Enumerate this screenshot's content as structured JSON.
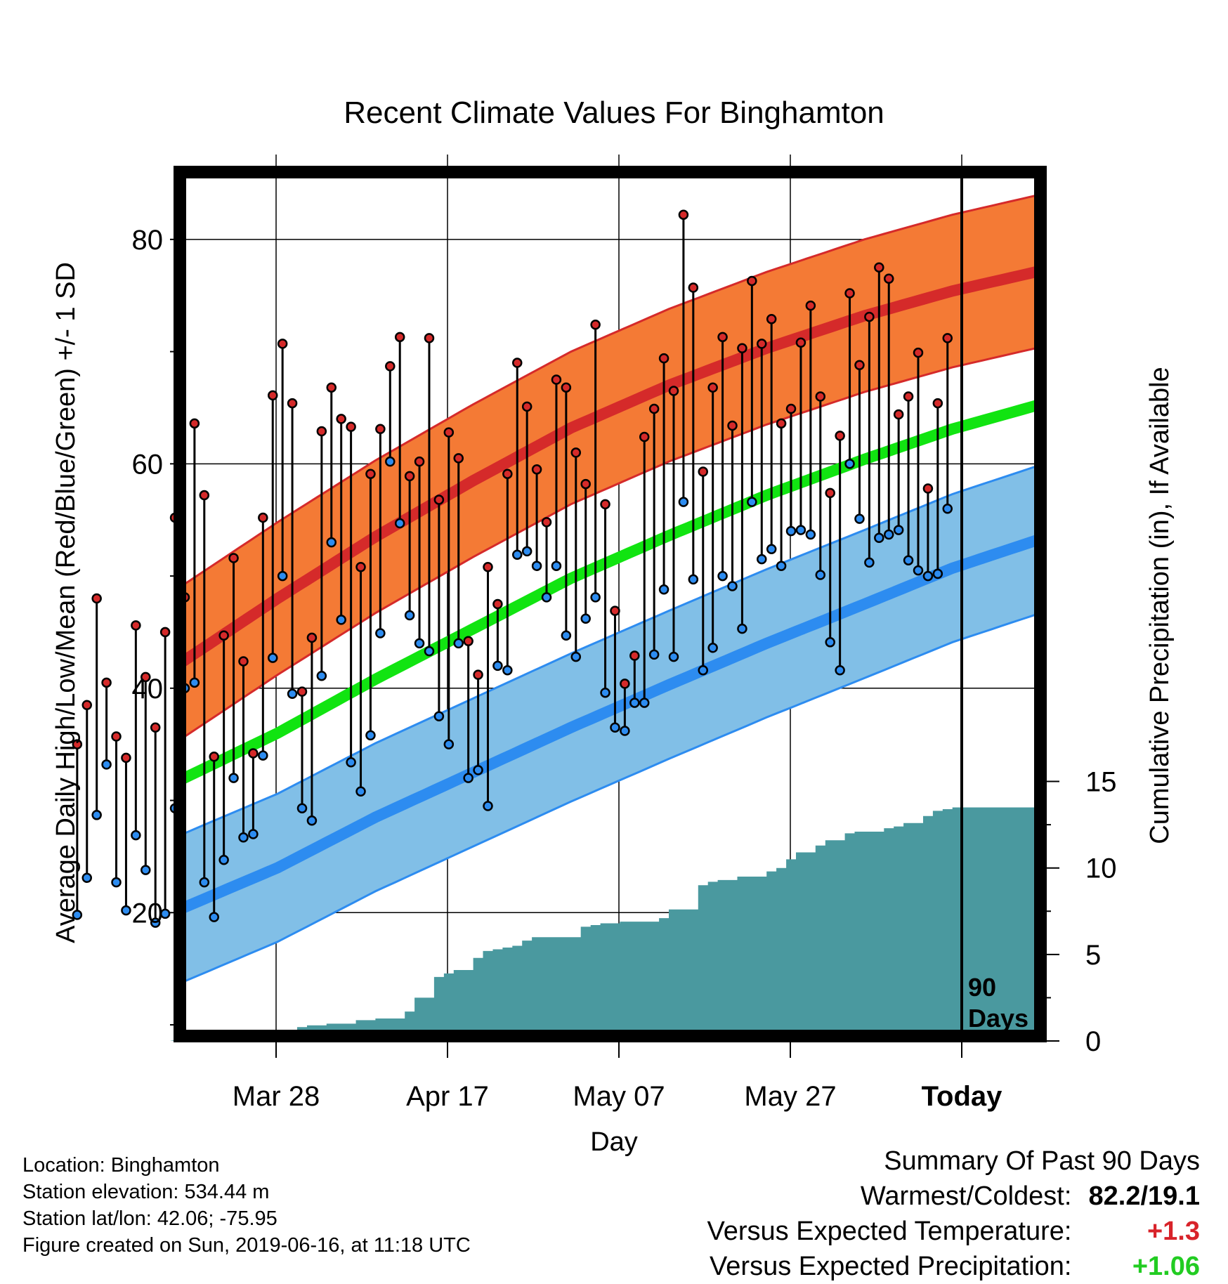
{
  "chart_data": {
    "type": "line",
    "title": "Recent Climate Values For Binghamton",
    "xlabel": "Day",
    "ylabel": "Average Daily High/Low/Mean (Red/Blue/Green) +/- 1 SD",
    "y2label": "Cumulative Precipitation (in), If Available",
    "x_tick_labels": [
      "Mar 28",
      "Apr 17",
      "May 07",
      "May 27",
      "Today"
    ],
    "y_ticks": [
      "20",
      "40",
      "60",
      "80"
    ],
    "y2_ticks": [
      "0",
      "5",
      "10",
      "15"
    ],
    "ylim": [
      9,
      86
    ],
    "y2lim": [
      0,
      30
    ],
    "xlim": [
      -79,
      9
    ],
    "today_marker": "90\nDays",
    "normal_high": {
      "x": [
        -79,
        -69,
        -59,
        -49,
        -39,
        -29,
        -19,
        -9,
        0,
        9
      ],
      "mean": [
        42.2,
        48,
        53.5,
        58.5,
        63.2,
        67,
        70.3,
        73.2,
        75.4,
        77.2
      ],
      "sd": 6.8
    },
    "normal_low": {
      "x": [
        -79,
        -69,
        -59,
        -49,
        -39,
        -29,
        -19,
        -9,
        0,
        9
      ],
      "mean": [
        20.3,
        24,
        28.5,
        32.5,
        36.5,
        40.3,
        44,
        47.5,
        50.7,
        53.3
      ],
      "sd": 6.6
    },
    "normal_mean": {
      "x": [
        -79,
        -69,
        -59,
        -49,
        -39,
        -29,
        -19,
        -9,
        0,
        9
      ],
      "values": [
        31.8,
        36,
        40.8,
        45.3,
        49.8,
        53.6,
        57.2,
        60.4,
        63.1,
        65.3
      ]
    },
    "series": [
      {
        "name": "High",
        "values": [
          35,
          38.5,
          48,
          40.5,
          35.7,
          33.8,
          45.6,
          41,
          36.5,
          45,
          55.2,
          48.1,
          63.6,
          57.2,
          33.9,
          44.7,
          51.6,
          42.4,
          34.2,
          55.2,
          66.1,
          70.7,
          65.4,
          39.7,
          44.5,
          62.9,
          66.8,
          64,
          63.3,
          50.8,
          59.1,
          63.1,
          68.7,
          71.3,
          58.9,
          60.2,
          71.2,
          56.8,
          62.8,
          60.5,
          44.2,
          41.2,
          50.8,
          47.5,
          59.1,
          69,
          65.1,
          59.5,
          54.8,
          67.5,
          66.8,
          61,
          58.2,
          72.4,
          56.4,
          46.9,
          40.4,
          42.9,
          62.4,
          64.9,
          69.4,
          66.5,
          82.2,
          75.7,
          59.3,
          66.8,
          71.3,
          63.4,
          70.3,
          76.3,
          70.7,
          72.9,
          63.6,
          64.9,
          70.8,
          74.1,
          66,
          57.4,
          62.5,
          75.2,
          68.8,
          73.1,
          77.5,
          76.5,
          64.4,
          66,
          69.9,
          57.8,
          65.4,
          71.2
        ]
      },
      {
        "name": "Low",
        "values": [
          19.8,
          23.1,
          28.7,
          33.2,
          22.7,
          20.2,
          26.9,
          23.8,
          19.1,
          19.9,
          29.3,
          40,
          40.5,
          22.7,
          19.6,
          24.7,
          32,
          26.7,
          27,
          34,
          42.7,
          50,
          39.5,
          29.3,
          28.2,
          41.1,
          53,
          46.1,
          33.4,
          30.8,
          35.8,
          44.9,
          60.2,
          54.7,
          46.5,
          44,
          43.3,
          37.5,
          35,
          44,
          32,
          32.7,
          29.5,
          42,
          41.6,
          51.9,
          52.2,
          50.9,
          48.1,
          50.9,
          44.7,
          42.8,
          46.2,
          48.1,
          39.6,
          36.5,
          36.2,
          38.7,
          38.7,
          43,
          48.8,
          42.8,
          56.6,
          49.7,
          41.6,
          43.6,
          50,
          49.1,
          45.3,
          56.6,
          51.5,
          52.4,
          50.9,
          54,
          54.1,
          53.7,
          50.1,
          44.1,
          41.6,
          60,
          55.1,
          51.2,
          53.4,
          53.7,
          54.1,
          51.4,
          50.5,
          50,
          50.2,
          56
        ]
      }
    ],
    "precip_cumulative": {
      "x": [
        -80,
        -79,
        -76,
        -67,
        -66,
        -64,
        -61,
        -59,
        -56,
        -55,
        -53,
        -52,
        -51,
        -49,
        -48,
        -47,
        -46,
        -45,
        -44,
        -43,
        -38,
        -37,
        -36,
        -34,
        -30,
        -29,
        -26,
        -25,
        -24,
        -22,
        -19,
        -18,
        -17,
        -16,
        -14,
        -13,
        -11,
        -10,
        -7,
        -6,
        -5,
        -3,
        -2,
        -1,
        0,
        9
      ],
      "values": [
        0.1,
        0,
        0.5,
        0.8,
        0.9,
        1,
        1.2,
        1.3,
        1.7,
        2.5,
        3.7,
        3.9,
        4.1,
        4.8,
        5.2,
        5.3,
        5.4,
        5.5,
        5.8,
        6,
        6.6,
        6.7,
        6.8,
        6.9,
        7.1,
        7.6,
        9,
        9.2,
        9.3,
        9.5,
        9.8,
        10,
        10.5,
        10.9,
        11.3,
        11.6,
        12,
        12.1,
        12.3,
        12.4,
        12.6,
        13,
        13.3,
        13.4,
        13.5,
        13.5
      ]
    }
  },
  "info": {
    "location": "Location: Binghamton",
    "elevation": "Station elevation: 534.44 m",
    "latlon": "Station lat/lon: 42.06; -75.95",
    "created": "Figure created on Sun, 2019-06-16, at 11:18 UTC"
  },
  "summary": {
    "heading": "Summary Of Past 90 Days",
    "rows": [
      {
        "label": "Warmest/Coldest:",
        "value": "82.2/19.1",
        "color": "#000000"
      },
      {
        "label": "Versus Expected Temperature:",
        "value": "+1.3",
        "color": "#d8232a"
      },
      {
        "label": "Versus Expected Precipitation:",
        "value": "+1.06",
        "color": "#22cc22"
      }
    ]
  },
  "colors": {
    "high_band": "#f47a35",
    "high_line": "#d52a2a",
    "high_edge": "#d52a2a",
    "low_band": "#81bfe7",
    "low_line": "#2d8cf0",
    "low_edge": "#2d8cf0",
    "mean_line": "#11e411",
    "precip": "#4a999f",
    "high_dot": "#d52a2a",
    "low_dot": "#2d8cf0"
  }
}
